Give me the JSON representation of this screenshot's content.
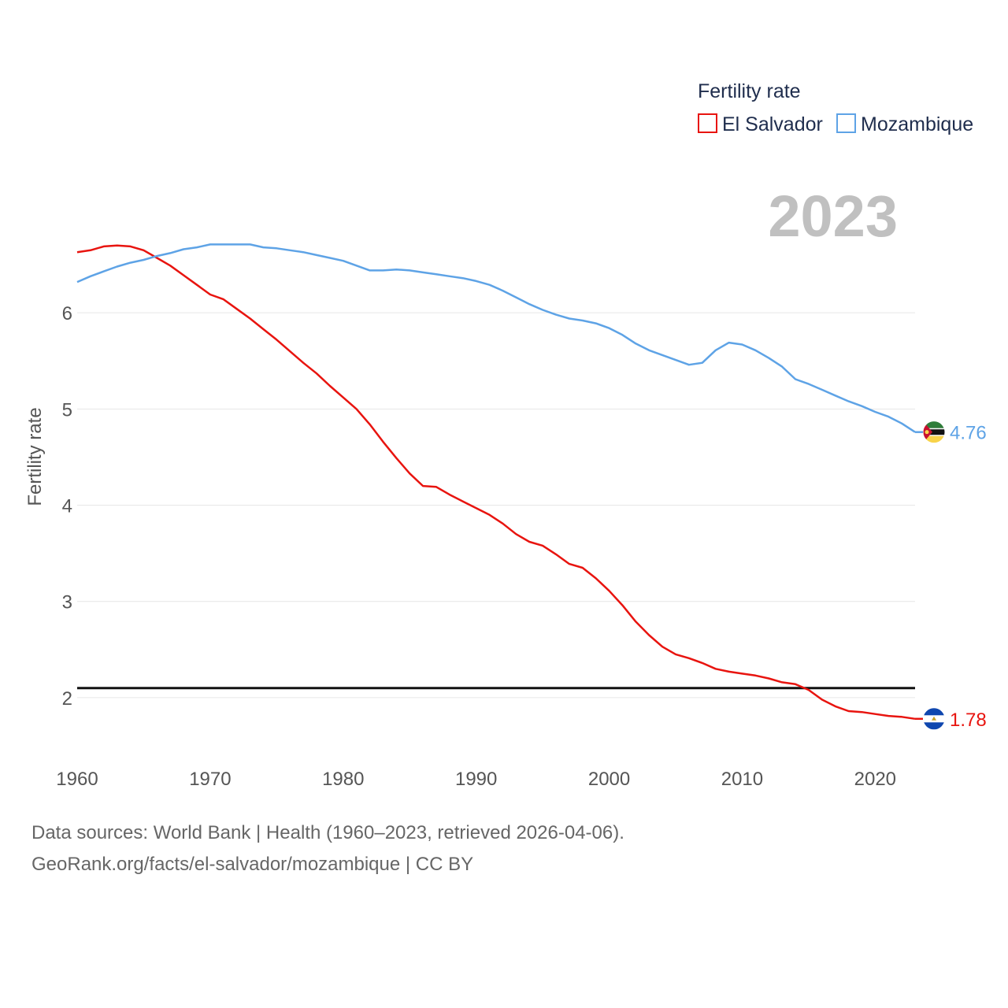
{
  "chart_data": {
    "type": "line",
    "legend_title": "Fertility rate",
    "ylabel": "Fertility rate",
    "current_year": "2023",
    "xlim": [
      1960,
      2023
    ],
    "ylim": [
      1.5,
      7.0
    ],
    "x_ticks": [
      1960,
      1970,
      1980,
      1990,
      2000,
      2010,
      2020
    ],
    "y_ticks": [
      2,
      3,
      4,
      5,
      6
    ],
    "reference_line": 2.1,
    "years": [
      1960,
      1961,
      1962,
      1963,
      1964,
      1965,
      1966,
      1967,
      1968,
      1969,
      1970,
      1971,
      1972,
      1973,
      1974,
      1975,
      1976,
      1977,
      1978,
      1979,
      1980,
      1981,
      1982,
      1983,
      1984,
      1985,
      1986,
      1987,
      1988,
      1989,
      1990,
      1991,
      1992,
      1993,
      1994,
      1995,
      1996,
      1997,
      1998,
      1999,
      2000,
      2001,
      2002,
      2003,
      2004,
      2005,
      2006,
      2007,
      2008,
      2009,
      2010,
      2011,
      2012,
      2013,
      2014,
      2015,
      2016,
      2017,
      2018,
      2019,
      2020,
      2021,
      2022,
      2023
    ],
    "series": [
      {
        "name": "El Salvador",
        "color": "#e8140f",
        "end_label": "1.78",
        "flag": "el-salvador-flag",
        "values": [
          6.63,
          6.65,
          6.69,
          6.7,
          6.69,
          6.65,
          6.57,
          6.49,
          6.39,
          6.29,
          6.19,
          6.14,
          6.04,
          5.94,
          5.83,
          5.72,
          5.6,
          5.48,
          5.37,
          5.24,
          5.12,
          5.0,
          4.84,
          4.66,
          4.49,
          4.33,
          4.2,
          4.19,
          4.11,
          4.04,
          3.97,
          3.9,
          3.81,
          3.7,
          3.62,
          3.58,
          3.49,
          3.39,
          3.35,
          3.24,
          3.11,
          2.96,
          2.79,
          2.65,
          2.53,
          2.45,
          2.41,
          2.36,
          2.3,
          2.27,
          2.25,
          2.23,
          2.2,
          2.16,
          2.14,
          2.08,
          1.98,
          1.91,
          1.86,
          1.85,
          1.83,
          1.81,
          1.8,
          1.78
        ]
      },
      {
        "name": "Mozambique",
        "color": "#5ea3e6",
        "end_label": "4.76",
        "flag": "mozambique-flag",
        "values": [
          6.32,
          6.38,
          6.43,
          6.48,
          6.52,
          6.55,
          6.59,
          6.62,
          6.66,
          6.68,
          6.71,
          6.71,
          6.71,
          6.71,
          6.68,
          6.67,
          6.65,
          6.63,
          6.6,
          6.57,
          6.54,
          6.49,
          6.44,
          6.44,
          6.45,
          6.44,
          6.42,
          6.4,
          6.38,
          6.36,
          6.33,
          6.29,
          6.23,
          6.16,
          6.09,
          6.03,
          5.98,
          5.94,
          5.92,
          5.89,
          5.84,
          5.77,
          5.68,
          5.61,
          5.56,
          5.51,
          5.46,
          5.48,
          5.61,
          5.69,
          5.67,
          5.61,
          5.53,
          5.44,
          5.31,
          5.26,
          5.2,
          5.14,
          5.08,
          5.03,
          4.97,
          4.92,
          4.85,
          4.76
        ]
      }
    ]
  },
  "footer": {
    "line1": "Data sources: World Bank | Health (1960–2023, retrieved 2026-04-06).",
    "line2": "GeoRank.org/facts/el-salvador/mozambique | CC BY"
  }
}
